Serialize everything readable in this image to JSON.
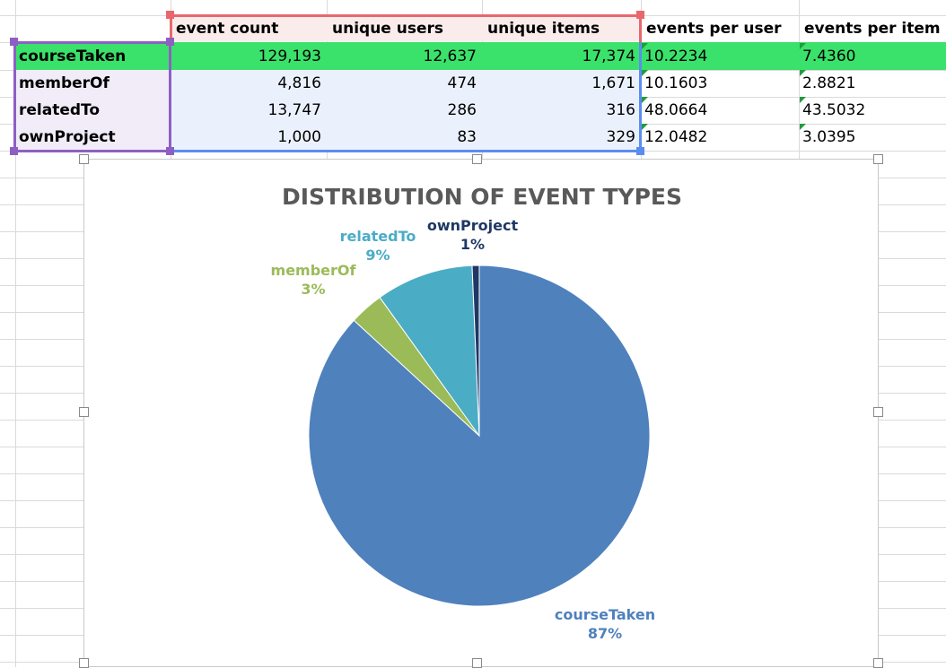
{
  "table": {
    "headers": [
      "event count",
      "unique users",
      "unique items",
      "events per user",
      "events per item"
    ],
    "rows": [
      {
        "label": "courseTaken",
        "event_count": "129,193",
        "unique_users": "12,637",
        "unique_items": "17,374",
        "events_per_user": "10.2234",
        "events_per_item": "7.4360"
      },
      {
        "label": "memberOf",
        "event_count": "4,816",
        "unique_users": "474",
        "unique_items": "1,671",
        "events_per_user": "10.1603",
        "events_per_item": "2.8821"
      },
      {
        "label": "relatedTo",
        "event_count": "13,747",
        "unique_users": "286",
        "unique_items": "316",
        "events_per_user": "48.0664",
        "events_per_item": "43.5032"
      },
      {
        "label": "ownProject",
        "event_count": "1,000",
        "unique_users": "83",
        "unique_items": "329",
        "events_per_user": "12.0482",
        "events_per_item": "3.0395"
      }
    ]
  },
  "colors": {
    "selected_row": "#3ae16a",
    "header_range": "#e8676c",
    "label_range": "#8e5fc3",
    "value_range": "#5b8def",
    "label_fill": "#f1ecf8",
    "value_fill": "#ebf1fc",
    "header_fill": "#fbecec"
  },
  "chart_data": {
    "type": "pie",
    "title": "DISTRIBUTION OF EVENT TYPES",
    "categories": [
      "courseTaken",
      "memberOf",
      "relatedTo",
      "ownProject"
    ],
    "values": [
      129193,
      4816,
      13747,
      1000
    ],
    "percent_labels": [
      "87%",
      "3%",
      "9%",
      "1%"
    ],
    "colors": [
      "#4f81bd",
      "#9bbb59",
      "#4bacc6",
      "#1f3864"
    ]
  }
}
